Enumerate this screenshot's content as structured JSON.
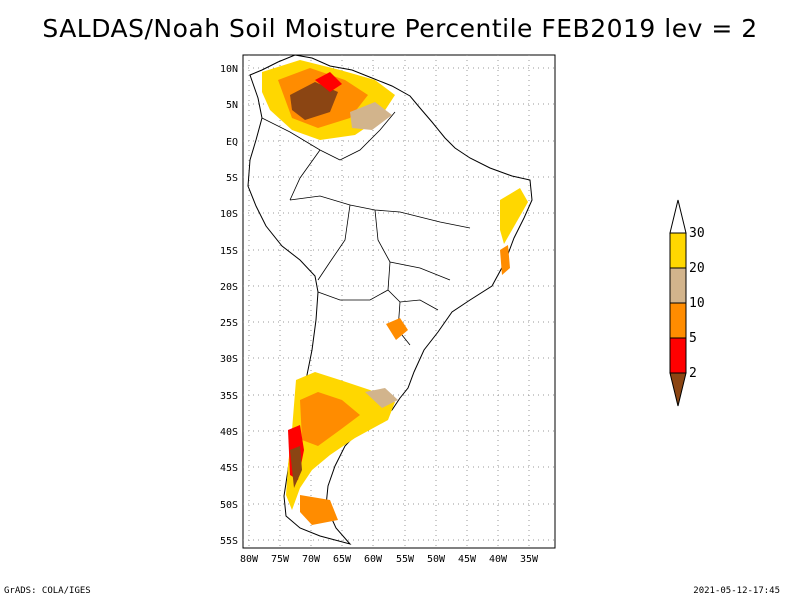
{
  "title": "SALDAS/Noah Soil Moisture Percentile FEB2019 lev = 2",
  "lat_labels": [
    "10N",
    "5N",
    "EQ",
    "5S",
    "10S",
    "15S",
    "20S",
    "25S",
    "30S",
    "35S",
    "40S",
    "45S",
    "50S",
    "55S"
  ],
  "lon_labels": [
    "80W",
    "75W",
    "70W",
    "65W",
    "60W",
    "55W",
    "50W",
    "45W",
    "40W",
    "35W"
  ],
  "colorbar": {
    "levels": [
      "2",
      "5",
      "10",
      "20",
      "30"
    ],
    "colors": [
      "#8b4513",
      "#ff0000",
      "#ff8c00",
      "#d2b48c",
      "#ffd700"
    ],
    "top_color": "#ffffff"
  },
  "footer_left": "GrADS: COLA/IGES",
  "footer_right": "2021-05-12-17:45"
}
